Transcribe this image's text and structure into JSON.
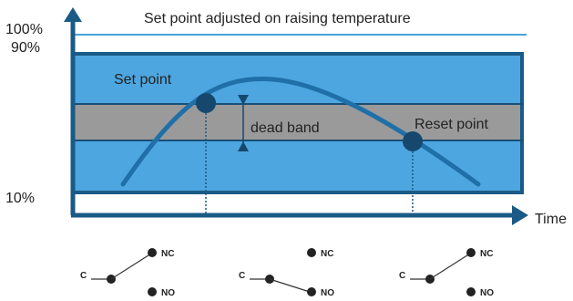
{
  "title": "Set point adjusted on raising temperature",
  "y_labels": {
    "top": "100%",
    "upper": "90%",
    "lower": "10%"
  },
  "x_axis_label": "Time",
  "annotations": {
    "set_point": "Set point",
    "dead_band": "dead band",
    "reset_point": "Reset point"
  },
  "switches": [
    {
      "common": "C",
      "nc": "NC",
      "no": "NO",
      "position": "NC"
    },
    {
      "common": "C",
      "nc": "NC",
      "no": "NO",
      "position": "NO"
    },
    {
      "common": "C",
      "nc": "NC",
      "no": "NO",
      "position": "NC"
    }
  ],
  "colors": {
    "axis": "#1a5a86",
    "band_fill": "#4da6e0",
    "band_border": "#1a5a86",
    "dead_band_fill": "#9a9a9a",
    "curve": "#1f6fa8",
    "marker": "#16486e",
    "top_line": "#4aa3d8"
  }
}
